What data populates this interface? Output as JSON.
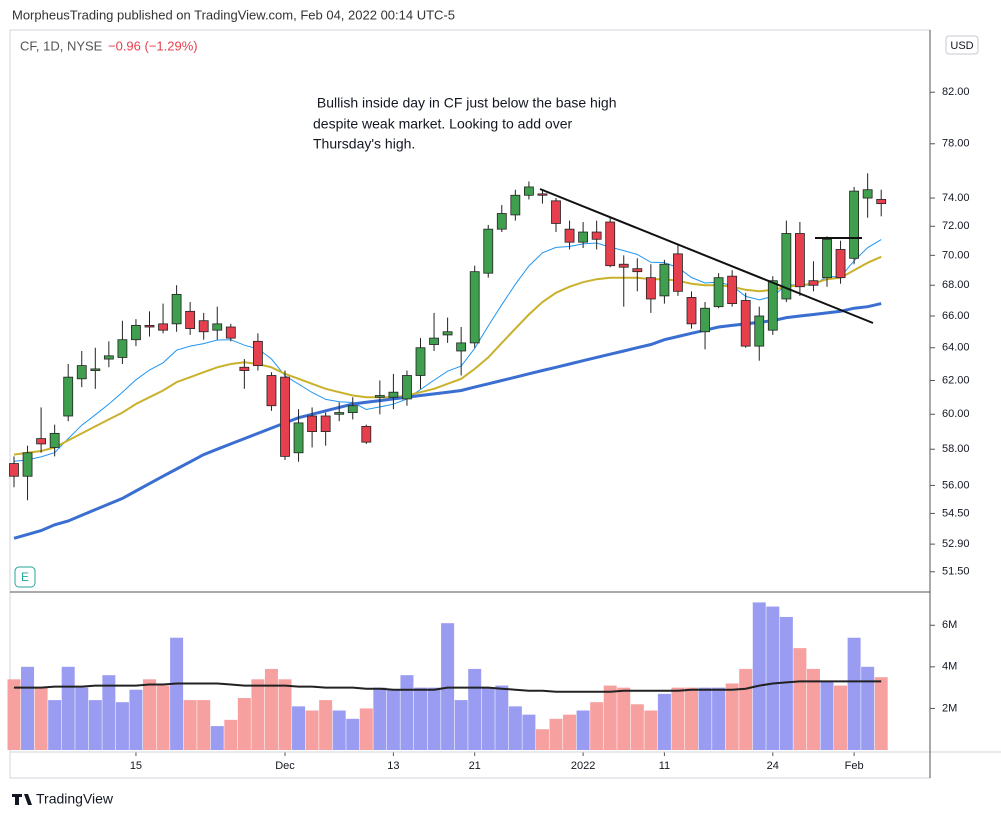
{
  "header": "MorpheusTrading published on TradingView.com, Feb 04, 2022 00:14 UTC-5",
  "brand": "TradingView",
  "chart_data": [
    {
      "type": "candlestick",
      "title": "CF, 1D, NYSE",
      "subtitle": "−0.96 (−1.29%)",
      "annotation": [
        " Bullish inside day in CF just below the base high",
        "despite weak market.  Looking to add over",
        "Thursday's high."
      ],
      "currency": "USD",
      "categories": [
        null,
        null,
        null,
        null,
        null,
        null,
        null,
        null,
        null,
        "15",
        null,
        null,
        null,
        null,
        null,
        null,
        null,
        null,
        null,
        null,
        "Dec",
        null,
        null,
        null,
        null,
        null,
        null,
        null,
        "13",
        null,
        null,
        null,
        null,
        null,
        "21",
        null,
        null,
        null,
        null,
        null,
        null,
        null,
        "2022",
        null,
        null,
        null,
        null,
        null,
        "11",
        null,
        null,
        null,
        null,
        null,
        null,
        null,
        "24",
        null,
        null,
        null,
        null,
        null,
        "Feb",
        null,
        null
      ],
      "open": [
        57.2,
        56.5,
        58.6,
        58.1,
        59.9,
        62.1,
        62.6,
        63.3,
        63.4,
        64.5,
        65.4,
        65.5,
        65.5,
        66.3,
        65.7,
        65.1,
        65.3,
        62.8,
        64.4,
        62.3,
        62.2,
        57.8,
        59.9,
        59.9,
        60.0,
        60.1,
        59.3,
        61.0,
        61.0,
        60.9,
        62.3,
        64.2,
        64.8,
        63.8,
        64.3,
        68.8,
        71.8,
        72.8,
        74.2,
        74.3,
        73.8,
        71.8,
        70.9,
        71.6,
        72.3,
        69.4,
        69.1,
        68.5,
        67.3,
        70.1,
        67.2,
        65.0,
        66.6,
        68.6,
        67.0,
        64.1,
        65.1,
        67.1,
        71.5,
        68.3,
        68.5,
        70.4,
        69.8,
        74.0,
        73.9
      ],
      "high": [
        57.6,
        58.2,
        60.4,
        59.4,
        63.0,
        63.8,
        64.0,
        64.4,
        65.7,
        65.8,
        66.3,
        66.8,
        68.0,
        66.9,
        66.2,
        66.6,
        65.5,
        63.3,
        64.9,
        62.5,
        62.6,
        60.3,
        60.4,
        60.1,
        60.7,
        61.0,
        59.4,
        62.0,
        62.4,
        62.6,
        64.6,
        66.2,
        65.9,
        65.3,
        69.3,
        72.1,
        73.5,
        74.6,
        75.2,
        74.6,
        74.0,
        72.4,
        72.3,
        72.4,
        72.6,
        70.0,
        69.8,
        69.4,
        69.7,
        70.7,
        67.6,
        66.9,
        68.8,
        69.0,
        67.5,
        66.6,
        68.6,
        72.4,
        72.3,
        69.6,
        71.3,
        71.0,
        74.8,
        75.8,
        74.6
      ],
      "low": [
        55.9,
        55.2,
        57.8,
        57.6,
        59.6,
        61.6,
        61.5,
        62.8,
        63.0,
        64.1,
        64.7,
        64.9,
        65.0,
        64.8,
        64.5,
        64.5,
        64.4,
        61.5,
        62.6,
        60.2,
        57.4,
        57.3,
        58.1,
        58.2,
        59.6,
        59.7,
        58.3,
        60.0,
        60.3,
        60.5,
        61.5,
        63.8,
        64.3,
        62.3,
        64.0,
        68.5,
        71.6,
        72.4,
        73.9,
        73.6,
        71.6,
        70.4,
        70.5,
        70.4,
        69.2,
        66.6,
        67.6,
        66.2,
        66.8,
        67.3,
        65.2,
        63.9,
        66.5,
        66.6,
        64.0,
        63.2,
        64.8,
        66.9,
        67.3,
        67.6,
        67.9,
        68.1,
        69.4,
        72.6,
        72.7
      ],
      "close": [
        56.5,
        57.8,
        58.3,
        58.9,
        62.2,
        62.9,
        62.7,
        63.5,
        64.5,
        65.4,
        65.3,
        65.1,
        67.4,
        65.2,
        65.0,
        65.5,
        64.6,
        62.6,
        62.9,
        60.5,
        57.6,
        59.5,
        59.0,
        59.0,
        60.1,
        60.5,
        58.4,
        61.1,
        61.3,
        62.3,
        64.0,
        64.6,
        65.0,
        64.3,
        68.9,
        71.8,
        72.9,
        74.2,
        74.8,
        74.2,
        72.2,
        70.9,
        71.6,
        71.1,
        69.3,
        69.2,
        68.9,
        67.1,
        69.4,
        67.6,
        65.5,
        66.5,
        68.5,
        66.8,
        64.1,
        66.0,
        68.3,
        71.5,
        67.9,
        68.0,
        71.1,
        68.5,
        74.5,
        74.6,
        73.6
      ],
      "up_color": "#3f9f4f",
      "down_color": "#e6404f",
      "lines": [
        {
          "color": "#2196f3",
          "width": 1,
          "values": [
            57.32,
            57.41,
            57.57,
            57.81,
            58.6,
            59.37,
            59.97,
            60.6,
            61.3,
            62.04,
            62.63,
            63.07,
            63.85,
            64.1,
            64.26,
            64.48,
            64.5,
            64.16,
            63.93,
            63.31,
            62.28,
            61.78,
            61.28,
            60.87,
            60.73,
            60.69,
            60.28,
            60.43,
            60.59,
            60.9,
            61.46,
            62.02,
            62.56,
            62.87,
            63.96,
            65.37,
            66.73,
            68.07,
            69.28,
            70.17,
            70.54,
            70.6,
            70.78,
            70.84,
            70.56,
            70.32,
            70.06,
            69.53,
            69.51,
            69.17,
            68.51,
            68.15,
            68.21,
            67.96,
            67.27,
            67.04,
            67.27,
            68.03,
            68.01,
            68.01,
            68.57,
            68.56,
            69.63,
            70.52,
            71.08
          ]
        },
        {
          "color": "#c9b12c",
          "width": 2,
          "values": [
            57.7,
            57.8,
            57.9,
            58.1,
            58.5,
            58.9,
            59.3,
            59.7,
            60.1,
            60.6,
            61.0,
            61.4,
            61.9,
            62.2,
            62.5,
            62.8,
            63.0,
            63.1,
            63.0,
            62.8,
            62.4,
            62.1,
            61.8,
            61.5,
            61.3,
            61.1,
            61.0,
            61.0,
            61.0,
            61.1,
            61.3,
            61.5,
            61.8,
            62.1,
            62.7,
            63.4,
            64.3,
            65.2,
            66.1,
            66.9,
            67.5,
            67.9,
            68.2,
            68.4,
            68.5,
            68.5,
            68.5,
            68.4,
            68.4,
            68.3,
            68.1,
            68.0,
            68.0,
            67.9,
            67.7,
            67.6,
            67.7,
            67.9,
            68.0,
            68.1,
            68.4,
            68.5,
            69.0,
            69.5,
            69.9
          ]
        },
        {
          "color": "#3a6fd1",
          "width": 3,
          "values": [
            53.2,
            53.4,
            53.6,
            53.9,
            54.1,
            54.4,
            54.7,
            55.0,
            55.3,
            55.7,
            56.1,
            56.5,
            56.9,
            57.3,
            57.7,
            58.0,
            58.3,
            58.6,
            58.9,
            59.2,
            59.5,
            59.8,
            60.0,
            60.2,
            60.4,
            60.6,
            60.7,
            60.8,
            60.9,
            61.0,
            61.1,
            61.2,
            61.3,
            61.4,
            61.6,
            61.8,
            62.0,
            62.2,
            62.4,
            62.6,
            62.8,
            63.0,
            63.2,
            63.4,
            63.6,
            63.8,
            64.0,
            64.2,
            64.5,
            64.7,
            64.9,
            65.1,
            65.3,
            65.4,
            65.5,
            65.6,
            65.7,
            65.9,
            66.0,
            66.1,
            66.2,
            66.3,
            66.5,
            66.6,
            66.8
          ]
        }
      ],
      "log": true,
      "ylim": [
        50.5,
        87.1
      ],
      "yticks": [
        {
          "value": 82,
          "label": "82.00"
        },
        {
          "value": 78,
          "label": "78.00"
        },
        {
          "value": 74,
          "label": "74.00"
        },
        {
          "value": 72,
          "label": "72.00"
        },
        {
          "value": 70,
          "label": "70.00"
        },
        {
          "value": 68,
          "label": "68.00"
        },
        {
          "value": 66,
          "label": "66.00"
        },
        {
          "value": 64,
          "label": "64.00"
        },
        {
          "value": 62,
          "label": "62.00"
        },
        {
          "value": 60,
          "label": "60.00"
        },
        {
          "value": 58,
          "label": "58.00"
        },
        {
          "value": 56,
          "label": "56.00"
        },
        {
          "value": 54.5,
          "label": "54.50"
        },
        {
          "value": 52.9,
          "label": "52.90"
        },
        {
          "value": 51.5,
          "label": "51.50"
        }
      ]
    },
    {
      "type": "bar",
      "values": [
        3400000,
        4000000,
        3000000,
        2400000,
        4000000,
        3000000,
        2400000,
        3600000,
        2300000,
        2900000,
        3400000,
        3100000,
        5400000,
        2400000,
        2400000,
        1150000,
        1450000,
        2500000,
        3400000,
        3900000,
        3400000,
        2100000,
        1900000,
        2400000,
        1900000,
        1500000,
        2000000,
        3000000,
        2900000,
        3600000,
        3000000,
        3000000,
        6100000,
        2400000,
        3900000,
        3000000,
        3100000,
        2100000,
        1700000,
        1000000,
        1500000,
        1700000,
        1900000,
        2300000,
        3100000,
        3000000,
        2200000,
        1900000,
        2700000,
        3000000,
        3000000,
        3000000,
        3000000,
        3200000,
        3900000,
        7100000,
        6900000,
        6400000,
        4900000,
        3900000,
        3300000,
        3100000,
        5400000,
        4000000,
        3500000
      ],
      "up_color": "#9a9cf2",
      "down_color": "#f7a0a0",
      "line": {
        "color": "#222222",
        "width": 2,
        "values": [
          3000000,
          3000000,
          3000000,
          3050000,
          3050000,
          3050000,
          3100000,
          3100000,
          3100000,
          3100000,
          3150000,
          3150000,
          3200000,
          3200000,
          3200000,
          3200000,
          3150000,
          3100000,
          3100000,
          3100000,
          3100000,
          3050000,
          3050000,
          3000000,
          3000000,
          3000000,
          2950000,
          2950000,
          2900000,
          2900000,
          2900000,
          2900000,
          3000000,
          3000000,
          3000000,
          3000000,
          2950000,
          2900000,
          2850000,
          2850000,
          2800000,
          2800000,
          2800000,
          2800000,
          2800000,
          2850000,
          2850000,
          2850000,
          2850000,
          2850000,
          2900000,
          2900000,
          2900000,
          2900000,
          2950000,
          3100000,
          3200000,
          3250000,
          3300000,
          3300000,
          3300000,
          3300000,
          3300000,
          3300000,
          3300000
        ]
      },
      "ylim": [
        0,
        7600000
      ],
      "yticks": [
        {
          "value": 6000000,
          "label": "6M"
        },
        {
          "value": 4000000,
          "label": "4M"
        },
        {
          "value": 2000000,
          "label": "2M"
        }
      ]
    }
  ]
}
